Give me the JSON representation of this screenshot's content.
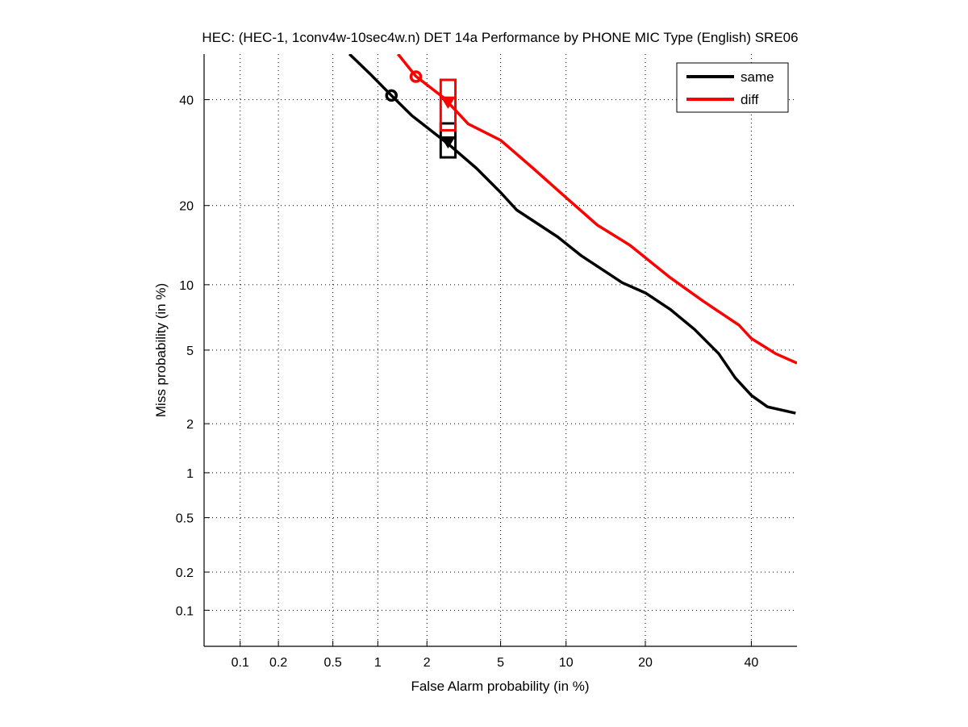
{
  "chart_data": {
    "type": "line",
    "plot_kind": "DET (normal deviate scale)",
    "title": "HEC: (HEC-1, 1conv4w-10sec4w.n) DET 14a Performance by PHONE MIC Type (English) SRE06",
    "xlabel": "False Alarm probability (in %)",
    "ylabel": "Miss probability (in %)",
    "xlim": [
      0.05,
      50
    ],
    "ylim": [
      0.05,
      50
    ],
    "xscale": "probit",
    "yscale": "probit",
    "x_ticks": [
      0.1,
      0.2,
      0.5,
      1,
      2,
      5,
      10,
      20,
      40
    ],
    "x_tick_labels": [
      "0.1",
      "0.2",
      "0.5",
      "1",
      "2",
      "5",
      "10",
      "20",
      "40"
    ],
    "y_ticks": [
      0.1,
      0.2,
      0.5,
      1,
      2,
      5,
      10,
      20,
      40
    ],
    "y_tick_labels": [
      "0.1",
      "0.2",
      "0.5",
      "1",
      "2",
      "5",
      "10",
      "20",
      "40"
    ],
    "grid": true,
    "legend": {
      "placement": "top-right",
      "entries": [
        "same",
        "diff"
      ]
    },
    "series": [
      {
        "name": "same",
        "color": "#000000",
        "x": [
          0.65,
          0.91,
          1.22,
          1.63,
          2.64,
          3.76,
          5.0,
          6.0,
          9.2,
          11.6,
          16.6,
          20.1,
          24.1,
          28.5,
          33.2,
          36.6,
          40.0,
          43.5,
          49.7
        ],
        "y": [
          50,
          45.3,
          40.9,
          36.6,
          30.9,
          26.3,
          22.1,
          19.3,
          15.5,
          13.1,
          10.2,
          9.2,
          7.8,
          6.3,
          4.8,
          3.6,
          2.9,
          2.5,
          2.3
        ],
        "min_dcf_point": {
          "x": 1.22,
          "y": 40.9,
          "marker": "circle"
        },
        "actual_dcf_point": {
          "x": 2.64,
          "y": 31.3,
          "marker": "triangle-down"
        },
        "confidence_box": {
          "x": [
            2.4,
            2.9
          ],
          "y": [
            28.3,
            35.0
          ]
        }
      },
      {
        "name": "diff",
        "color": "#ff0000",
        "x": [
          1.34,
          1.72,
          2.5,
          3.4,
          5.0,
          7.15,
          9.9,
          13.4,
          17.7,
          24.1,
          30.1,
          37.4,
          40.0,
          45.3,
          50
        ],
        "y": [
          50,
          45.1,
          40.4,
          34.9,
          31.6,
          26.3,
          21.4,
          17.1,
          14.4,
          10.7,
          8.5,
          6.6,
          5.7,
          4.8,
          4.3
        ],
        "min_dcf_point": {
          "x": 1.72,
          "y": 45.0,
          "marker": "circle"
        },
        "actual_dcf_point": {
          "x": 2.64,
          "y": 39.5,
          "marker": "triangle-down"
        },
        "confidence_box": {
          "x": [
            2.4,
            2.9
          ],
          "y": [
            33.6,
            44.3
          ]
        }
      }
    ]
  }
}
